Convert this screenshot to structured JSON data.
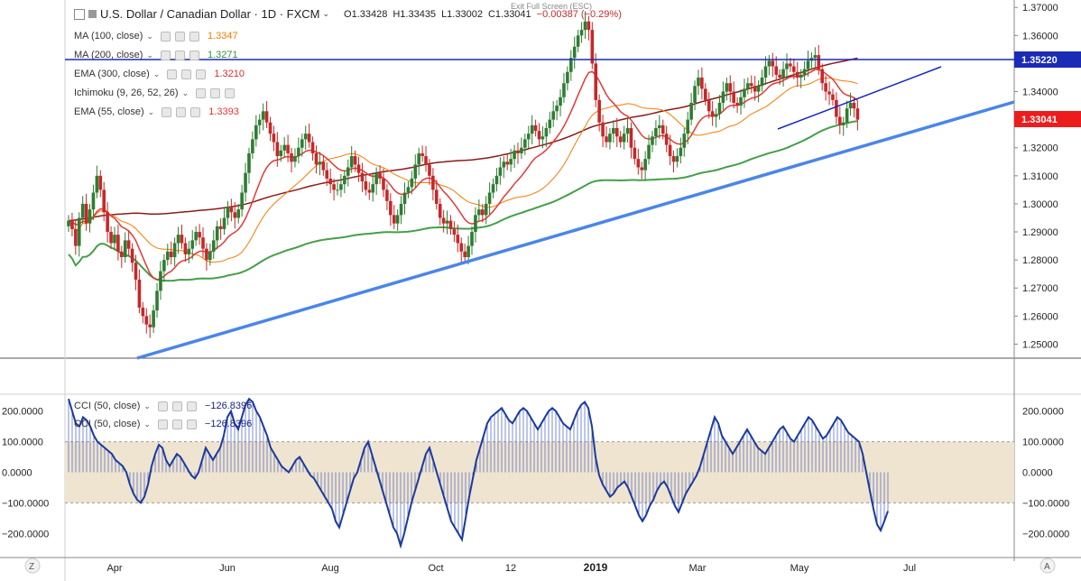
{
  "header": {
    "exit_fullscreen": "Exit Full Screen (ESC)",
    "title": "U.S. Dollar / Canadian Dollar · 1D · FXCM",
    "open": "O1.33428",
    "high": "H1.33435",
    "low": "L1.33002",
    "close": "C1.33041",
    "change": "−0.00387 (−0.29%)"
  },
  "legends": [
    {
      "name": "MA (100, close)",
      "value": "1.3347",
      "color": "#f57c00"
    },
    {
      "name": "MA (200, close)",
      "value": "1.3271",
      "color": "#388e3c"
    },
    {
      "name": "EMA (300, close)",
      "value": "1.3210",
      "color": "#d32f2f"
    },
    {
      "name": "Ichimoku (9, 26, 52, 26)",
      "value": "",
      "color": "#999999"
    },
    {
      "name": "EMA (55, close)",
      "value": "1.3393",
      "color": "#e53935"
    }
  ],
  "cci_legends": [
    {
      "name": "CCI (50, close)",
      "value": "−126.8396",
      "color": "#1a237e"
    },
    {
      "name": "CCI (50, close)",
      "value": "−126.8396",
      "color": "#1a237e"
    }
  ],
  "price_labels": {
    "resistance": "1.35220",
    "last": "1.33041"
  },
  "colors": {
    "up": "#2e7d32",
    "down": "#c62828",
    "ma100": "#f57c00",
    "ma200": "#43a047",
    "ema300": "#8b1a1a",
    "ema55": "#e53935",
    "trend": "#4a86e8",
    "resistance": "#1a2bb5",
    "cci": "#1a3a9e",
    "cci_band": "#efe4cf"
  },
  "ui": {
    "z_button": "Z",
    "a_button": "A"
  },
  "chart_data": {
    "type": "candlestick",
    "title": "U.S. Dollar / Canadian Dollar · 1D · FXCM",
    "y_ticks": [
      "1.37000",
      "1.36000",
      "1.35000",
      "1.34000",
      "1.33000",
      "1.32000",
      "1.31000",
      "1.30000",
      "1.29000",
      "1.28000",
      "1.27000",
      "1.26000",
      "1.25000"
    ],
    "ylim": [
      1.245,
      1.372
    ],
    "x_ticks": [
      "Apr",
      "Jun",
      "Aug",
      "Oct",
      "12",
      "2019",
      "Mar",
      "May",
      "Jul"
    ],
    "closes": [
      1.294,
      1.291,
      1.285,
      1.295,
      1.3,
      1.293,
      1.298,
      1.304,
      1.31,
      1.305,
      1.297,
      1.29,
      1.286,
      1.289,
      1.283,
      1.281,
      1.287,
      1.284,
      1.279,
      1.273,
      1.263,
      1.26,
      1.257,
      1.256,
      1.262,
      1.269,
      1.276,
      1.28,
      1.283,
      1.281,
      1.286,
      1.289,
      1.286,
      1.282,
      1.284,
      1.287,
      1.29,
      1.288,
      1.284,
      1.28,
      1.283,
      1.287,
      1.292,
      1.291,
      1.295,
      1.299,
      1.297,
      1.295,
      1.298,
      1.304,
      1.311,
      1.318,
      1.323,
      1.328,
      1.33,
      1.333,
      1.329,
      1.325,
      1.322,
      1.317,
      1.319,
      1.321,
      1.318,
      1.315,
      1.317,
      1.32,
      1.323,
      1.325,
      1.322,
      1.318,
      1.314,
      1.315,
      1.312,
      1.309,
      1.307,
      1.305,
      1.305,
      1.307,
      1.31,
      1.313,
      1.317,
      1.314,
      1.311,
      1.308,
      1.305,
      1.304,
      1.307,
      1.311,
      1.309,
      1.305,
      1.301,
      1.296,
      1.293,
      1.296,
      1.3,
      1.304,
      1.306,
      1.309,
      1.314,
      1.318,
      1.317,
      1.314,
      1.31,
      1.305,
      1.3,
      1.295,
      1.293,
      1.294,
      1.291,
      1.289,
      1.286,
      1.283,
      1.281,
      1.285,
      1.29,
      1.296,
      1.298,
      1.296,
      1.3,
      1.304,
      1.307,
      1.31,
      1.313,
      1.315,
      1.314,
      1.316,
      1.319,
      1.318,
      1.32,
      1.323,
      1.325,
      1.328,
      1.326,
      1.323,
      1.324,
      1.327,
      1.33,
      1.333,
      1.335,
      1.338,
      1.343,
      1.347,
      1.352,
      1.356,
      1.36,
      1.362,
      1.365,
      1.362,
      1.35,
      1.337,
      1.329,
      1.324,
      1.322,
      1.325,
      1.327,
      1.324,
      1.322,
      1.325,
      1.327,
      1.32,
      1.316,
      1.313,
      1.312,
      1.316,
      1.321,
      1.324,
      1.327,
      1.328,
      1.325,
      1.321,
      1.317,
      1.315,
      1.317,
      1.32,
      1.325,
      1.33,
      1.336,
      1.342,
      1.345,
      1.341,
      1.337,
      1.333,
      1.331,
      1.332,
      1.336,
      1.34,
      1.343,
      1.34,
      1.336,
      1.335,
      1.338,
      1.341,
      1.343,
      1.342,
      1.34,
      1.342,
      1.345,
      1.349,
      1.351,
      1.349,
      1.346,
      1.345,
      1.348,
      1.35,
      1.349,
      1.347,
      1.345,
      1.346,
      1.348,
      1.351,
      1.352,
      1.353,
      1.348,
      1.343,
      1.34,
      1.339,
      1.337,
      1.331,
      1.328,
      1.329,
      1.334,
      1.336,
      1.334,
      1.33
    ],
    "cci": [
      240,
      200,
      160,
      150,
      180,
      170,
      150,
      120,
      100,
      90,
      80,
      70,
      60,
      40,
      30,
      20,
      0,
      -40,
      -70,
      -90,
      -100,
      -80,
      -40,
      20,
      60,
      90,
      80,
      40,
      20,
      40,
      60,
      50,
      30,
      10,
      -10,
      -20,
      0,
      40,
      80,
      60,
      40,
      60,
      80,
      120,
      180,
      200,
      160,
      140,
      180,
      220,
      240,
      230,
      200,
      180,
      150,
      120,
      80,
      60,
      40,
      20,
      10,
      0,
      20,
      40,
      50,
      30,
      10,
      -10,
      -20,
      -40,
      -60,
      -80,
      -100,
      -120,
      -160,
      -180,
      -140,
      -100,
      -60,
      -20,
      0,
      40,
      80,
      100,
      60,
      20,
      -20,
      -60,
      -100,
      -140,
      -180,
      -200,
      -240,
      -200,
      -150,
      -100,
      -60,
      -20,
      20,
      60,
      80,
      40,
      0,
      -40,
      -80,
      -120,
      -160,
      -180,
      -200,
      -220,
      -150,
      -80,
      -20,
      40,
      80,
      120,
      160,
      180,
      190,
      200,
      210,
      190,
      170,
      160,
      180,
      200,
      210,
      200,
      180,
      160,
      140,
      160,
      180,
      200,
      210,
      200,
      180,
      160,
      150,
      140,
      170,
      200,
      220,
      230,
      210,
      150,
      50,
      -10,
      -40,
      -60,
      -80,
      -70,
      -50,
      -40,
      -30,
      -50,
      -80,
      -110,
      -140,
      -160,
      -140,
      -110,
      -90,
      -60,
      -40,
      -30,
      -50,
      -80,
      -110,
      -130,
      -100,
      -70,
      -50,
      -30,
      -10,
      20,
      60,
      100,
      140,
      180,
      160,
      120,
      100,
      80,
      60,
      80,
      100,
      120,
      140,
      120,
      100,
      80,
      70,
      60,
      80,
      100,
      120,
      140,
      150,
      130,
      110,
      100,
      120,
      140,
      160,
      180,
      170,
      150,
      130,
      110,
      120,
      140,
      160,
      180,
      170,
      150,
      130,
      120,
      110,
      100,
      60,
      0,
      -60,
      -120,
      -170,
      -190,
      -160,
      -127
    ],
    "cci_ticks": [
      "200.0000",
      "100.0000",
      "0.0000",
      "−100.0000",
      "−200.0000"
    ],
    "cci_ylim": [
      -255,
      255
    ]
  }
}
